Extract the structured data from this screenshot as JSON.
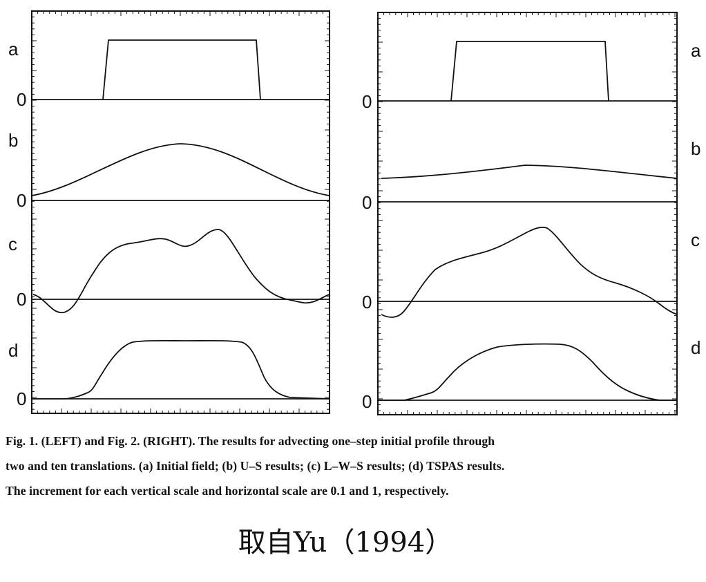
{
  "figures": [
    {
      "side": "left",
      "label_side": "left",
      "panels": [
        {
          "letter": "a",
          "zero_label": "0"
        },
        {
          "letter": "b",
          "zero_label": "0"
        },
        {
          "letter": "c",
          "zero_label": "0"
        },
        {
          "letter": "d",
          "zero_label": "0"
        }
      ]
    },
    {
      "side": "right",
      "label_side": "right",
      "panels": [
        {
          "letter": "a",
          "zero_label": "0"
        },
        {
          "letter": "b",
          "zero_label": "0"
        },
        {
          "letter": "c",
          "zero_label": "0"
        },
        {
          "letter": "d",
          "zero_label": "0"
        }
      ]
    }
  ],
  "caption": {
    "lines": [
      "Fig. 1. (LEFT) and Fig. 2. (RIGHT). The results for advecting one–step initial profile through",
      "two and ten translations. (a) Initial field; (b) U–S results; (c) L–W–S results; (d) TSPAS results.",
      "The increment for each vertical scale and horizontal scale are 0.1 and 1, respectively."
    ]
  },
  "source_text": "取自Yu（1994）"
}
